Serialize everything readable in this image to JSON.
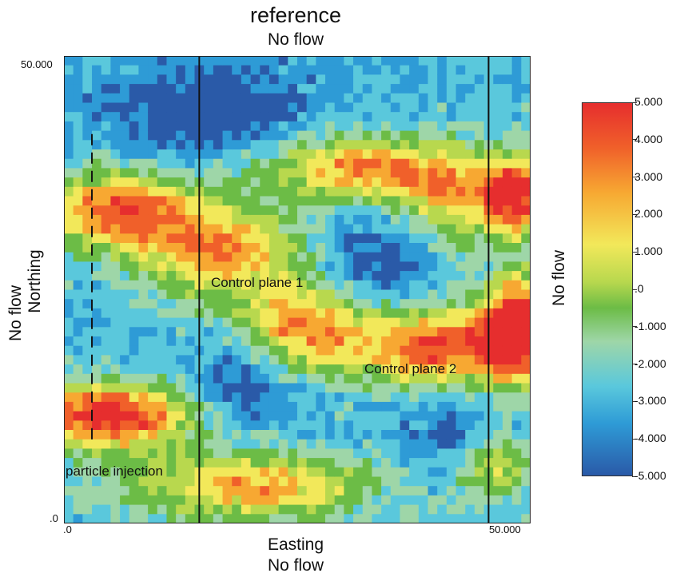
{
  "title": "reference",
  "boundary_labels": {
    "top": "No flow",
    "bottom": "No flow",
    "left": "No flow",
    "right": "No flow"
  },
  "axes": {
    "xlabel": "Easting",
    "ylabel": "Northing",
    "x_ticks": [
      ".0",
      "50.000"
    ],
    "y_ticks": [
      ".0",
      "50.000"
    ],
    "xlim": [
      0,
      50
    ],
    "ylim": [
      0,
      50
    ]
  },
  "annotations": {
    "control_plane_1": "Control plane 1",
    "control_plane_2": "Control plane 2",
    "particle_injection": "particle injection"
  },
  "colorbar": {
    "ticks": [
      "5.000",
      "4.000",
      "3.000",
      "2.000",
      "1.000",
      ".0",
      "-1.000",
      "-2.000",
      "-3.000",
      "-4.000",
      "-5.000"
    ],
    "range": [
      -5,
      5
    ],
    "colors": [
      "#2a5aa8",
      "#2e9bd6",
      "#5ac8dc",
      "#9ed6a8",
      "#6cbc46",
      "#b8d84e",
      "#f2e85a",
      "#f7a832",
      "#f0602a",
      "#e62e2e"
    ]
  },
  "chart_data": {
    "type": "heatmap",
    "title": "reference",
    "xlabel": "Easting",
    "ylabel": "Northing",
    "xlim": [
      0,
      50
    ],
    "ylim": [
      0,
      50
    ],
    "value_range": [
      -5,
      5
    ],
    "grid": "50x50 cells",
    "control_plane_1_easting": 14.5,
    "control_plane_2_easting": 45.5,
    "injection_line_easting": 3,
    "injection_line_northing_range": [
      9,
      42
    ]
  }
}
